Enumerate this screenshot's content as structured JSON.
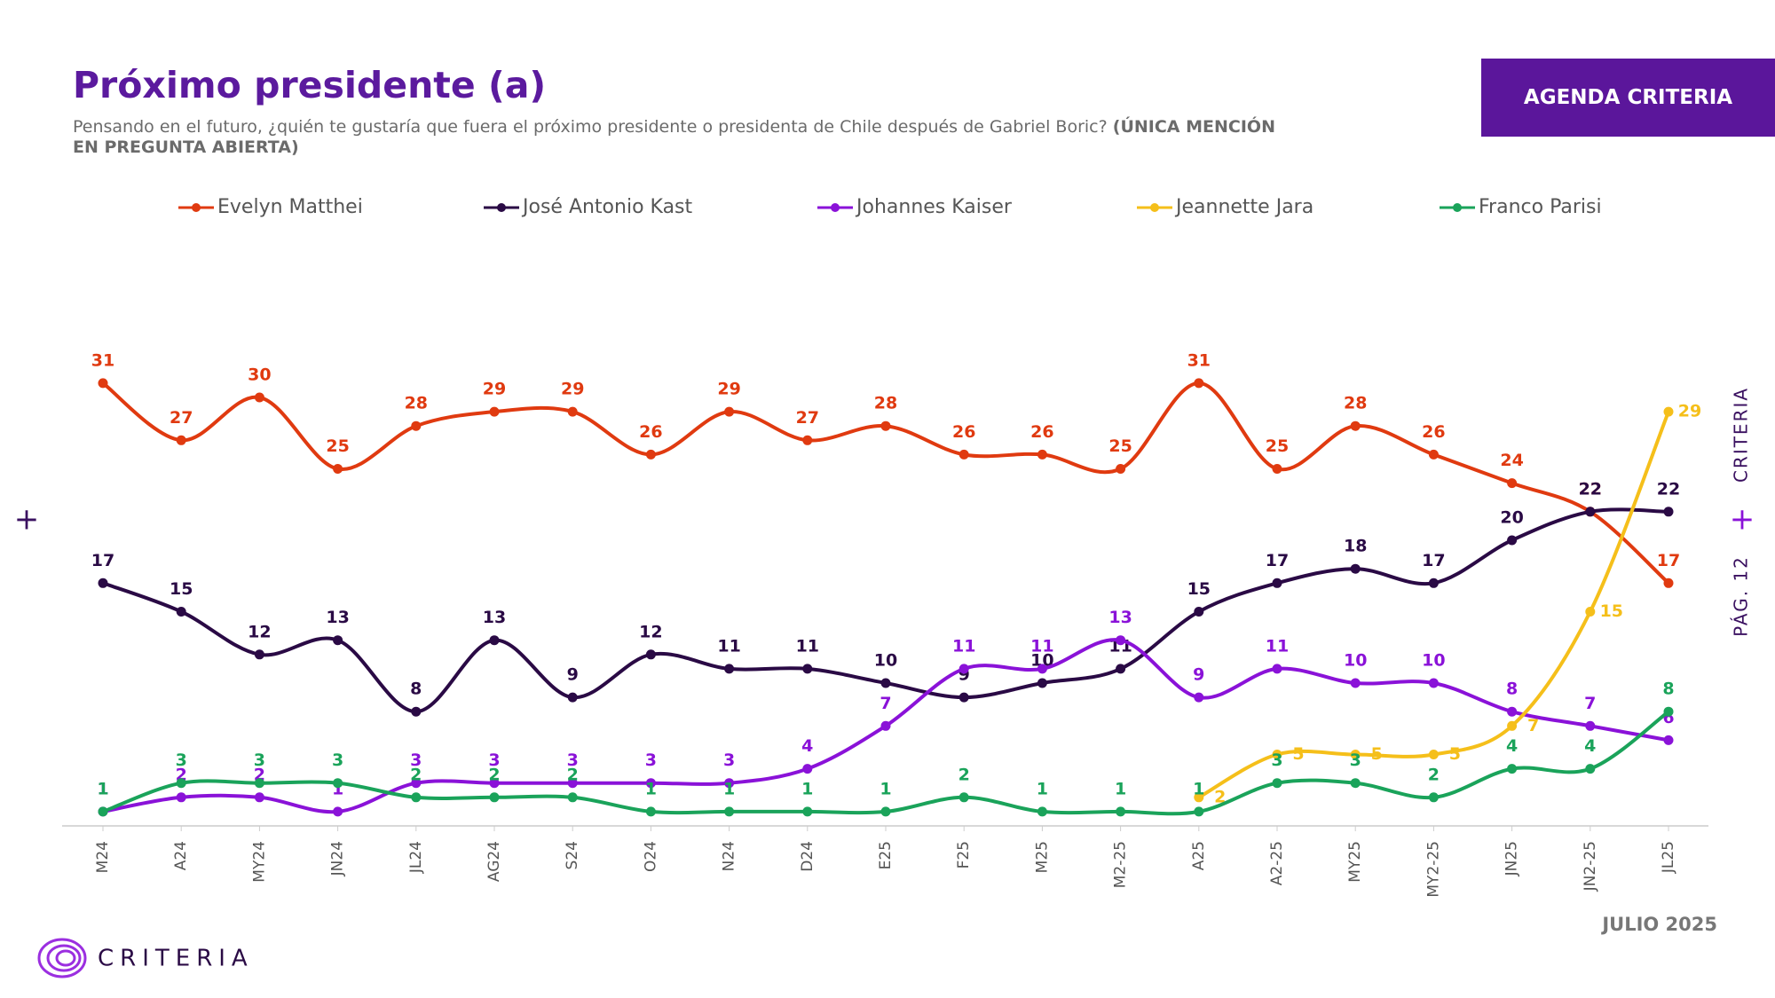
{
  "page": {
    "badge": "AGENDA CRITERIA",
    "side_brand": "CRITERIA",
    "side_page": "PÁG. 12",
    "logo": "CRITERIA",
    "date": "JULIO 2025"
  },
  "chart_data": {
    "type": "line",
    "title": "Próximo presidente (a)",
    "subtitle": "Pensando en el futuro, ¿quién te gustaría que fuera el próximo presidente o presidenta de Chile después de Gabriel Boric?",
    "subtitle_emphasis": "(ÚNICA MENCIÓN EN PREGUNTA ABIERTA)",
    "categories": [
      "M24",
      "A24",
      "MY24",
      "JN24",
      "JL24",
      "AG24",
      "S24",
      "O24",
      "N24",
      "D24",
      "E25",
      "F25",
      "M25",
      "M2-25",
      "A25",
      "A2-25",
      "MY25",
      "MY2-25",
      "JN25",
      "JN2-25",
      "JL25"
    ],
    "series": [
      {
        "name": "Evelyn Matthei",
        "color": "#e03a10",
        "values": [
          31,
          27,
          30,
          25,
          28,
          29,
          29,
          26,
          29,
          27,
          28,
          26,
          26,
          25,
          31,
          25,
          28,
          26,
          24,
          22,
          17
        ]
      },
      {
        "name": "José Antonio Kast",
        "color": "#2a0a45",
        "values": [
          17,
          15,
          12,
          13,
          8,
          13,
          9,
          12,
          11,
          11,
          10,
          9,
          10,
          11,
          15,
          17,
          18,
          17,
          20,
          22,
          22
        ]
      },
      {
        "name": "Johannes Kaiser",
        "color": "#8a12d8",
        "values": [
          1,
          2,
          2,
          1,
          3,
          3,
          3,
          3,
          3,
          4,
          7,
          11,
          11,
          13,
          9,
          11,
          10,
          10,
          8,
          7,
          6
        ]
      },
      {
        "name": "Jeannette Jara",
        "color": "#f5bf1a",
        "values": [
          null,
          null,
          null,
          null,
          null,
          null,
          null,
          null,
          null,
          null,
          null,
          null,
          null,
          null,
          2,
          5,
          5,
          5,
          7,
          15,
          29
        ]
      },
      {
        "name": "Franco Parisi",
        "color": "#1aa35a",
        "values": [
          1,
          3,
          3,
          3,
          2,
          2,
          2,
          1,
          1,
          1,
          1,
          2,
          1,
          1,
          1,
          3,
          3,
          2,
          4,
          4,
          8
        ]
      }
    ],
    "legend": "top"
  }
}
